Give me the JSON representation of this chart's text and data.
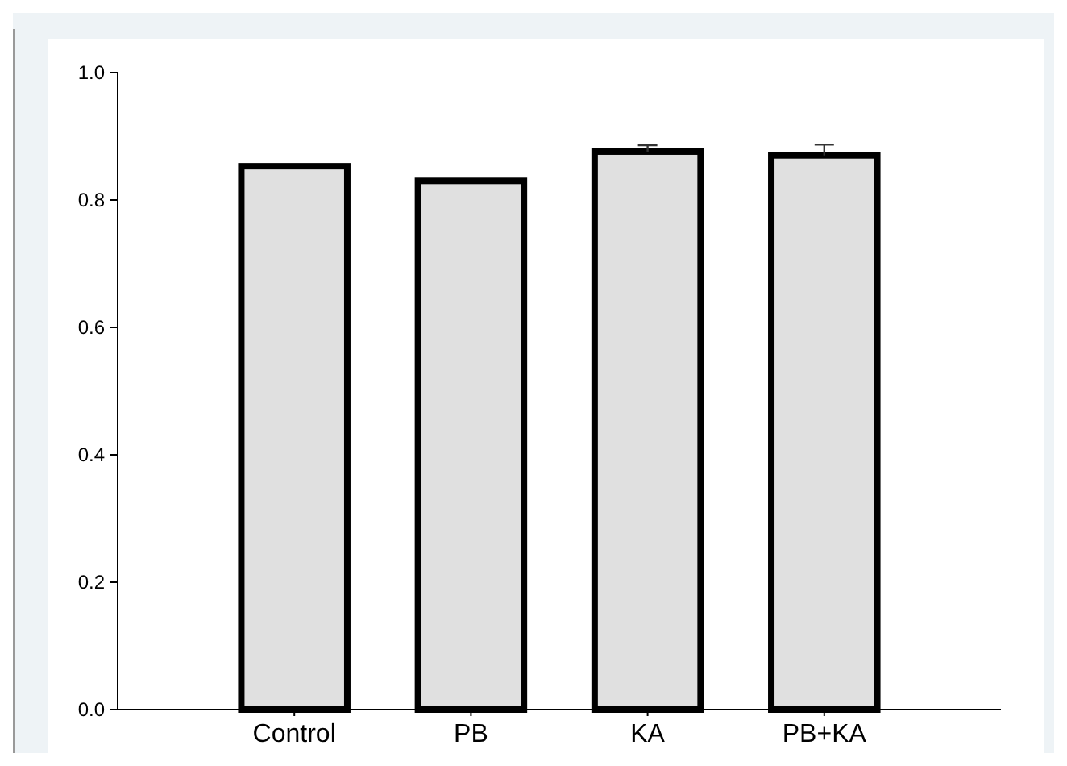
{
  "chart_data": {
    "type": "bar",
    "categories": [
      "Control",
      "PB",
      "KA",
      "PB+KA"
    ],
    "values": [
      0.853,
      0.83,
      0.876,
      0.87
    ],
    "errors": [
      null,
      null,
      0.01,
      0.017
    ],
    "color": "#e0e0e0",
    "ylim": [
      0,
      1
    ],
    "yticks": [
      {
        "value": 0,
        "label": "0.0"
      },
      {
        "value": 0.2,
        "label": "0.2"
      },
      {
        "value": 0.4,
        "label": "0.4"
      },
      {
        "value": 0.6,
        "label": "0.6"
      },
      {
        "value": 0.8,
        "label": "0.8"
      },
      {
        "value": 1,
        "label": "1.0"
      }
    ]
  }
}
